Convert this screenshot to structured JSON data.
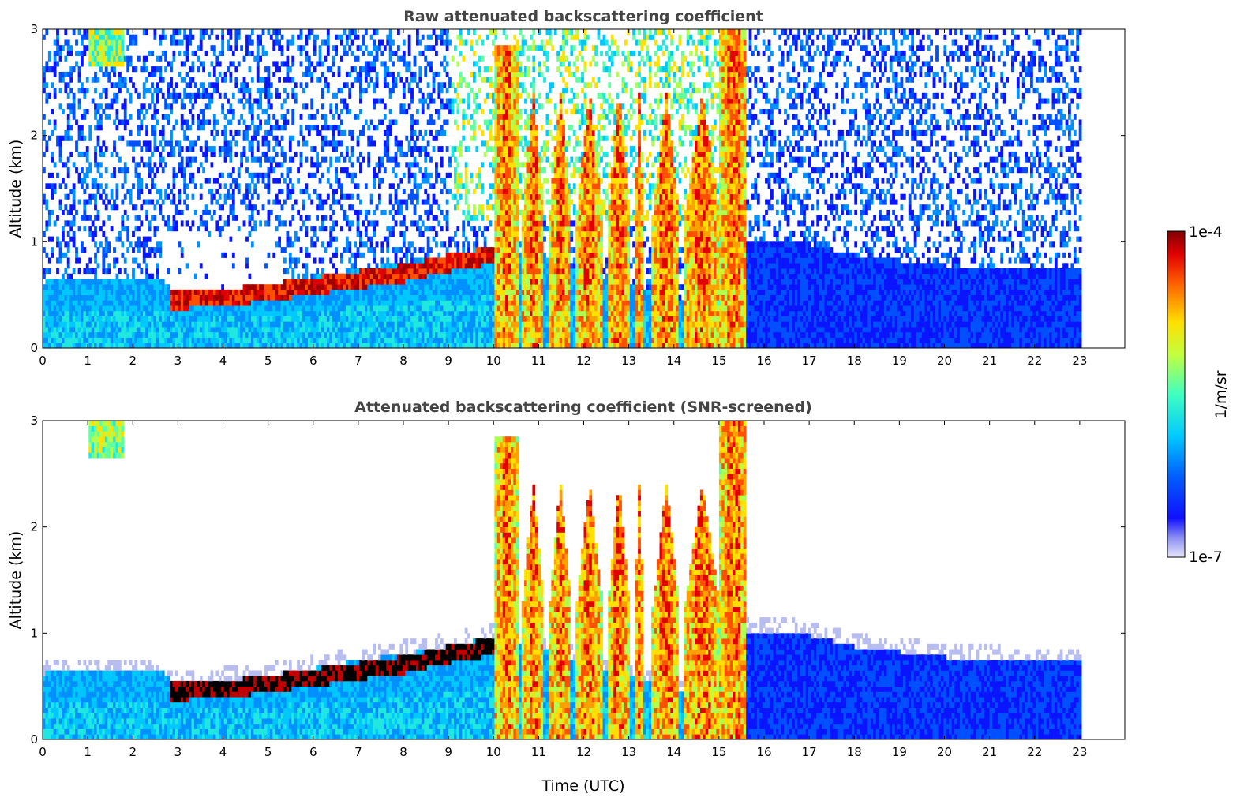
{
  "chart_data": [
    {
      "type": "heatmap",
      "title": "Raw attenuated backscattering coefficient",
      "xlabel": "",
      "ylabel": "Altitude (km)",
      "xlim": [
        0,
        24
      ],
      "ylim": [
        0,
        3
      ],
      "x_ticks": [
        "0",
        "1",
        "2",
        "3",
        "4",
        "5",
        "6",
        "7",
        "8",
        "9",
        "10",
        "11",
        "12",
        "13",
        "14",
        "15",
        "16",
        "17",
        "18",
        "19",
        "20",
        "21",
        "22",
        "23"
      ],
      "y_ticks": [
        "0",
        "1",
        "2",
        "3"
      ],
      "data_end_time": 23,
      "screened": false
    },
    {
      "type": "heatmap",
      "title": "Attenuated backscattering coefficient (SNR-screened)",
      "xlabel": "Time (UTC)",
      "ylabel": "Altitude (km)",
      "xlim": [
        0,
        24
      ],
      "ylim": [
        0,
        3
      ],
      "x_ticks": [
        "0",
        "1",
        "2",
        "3",
        "4",
        "5",
        "6",
        "7",
        "8",
        "9",
        "10",
        "11",
        "12",
        "13",
        "14",
        "15",
        "16",
        "17",
        "18",
        "19",
        "20",
        "21",
        "22",
        "23"
      ],
      "y_ticks": [
        "0",
        "1",
        "2",
        "3"
      ],
      "data_end_time": 23,
      "screened": true
    }
  ],
  "colorbar": {
    "label": "1/m/sr",
    "max_label": "1e-4",
    "min_label": "1e-7",
    "colormap": "jet",
    "scale": "log"
  },
  "features": {
    "boundary_layer_top_km": [
      [
        0,
        0.6
      ],
      [
        2.6,
        0.62
      ],
      [
        3,
        0.48
      ],
      [
        5,
        0.58
      ],
      [
        7,
        0.72
      ],
      [
        9,
        0.85
      ],
      [
        10,
        0.95
      ],
      [
        10.5,
        0.9
      ],
      [
        14.2,
        0.4
      ],
      [
        15,
        1.0
      ],
      [
        16.5,
        1.0
      ],
      [
        18,
        0.85
      ],
      [
        20,
        0.75
      ],
      [
        23,
        0.7
      ]
    ],
    "dense_aerosol_layer_km": [
      [
        2.8,
        0.42
      ],
      [
        4,
        0.45
      ],
      [
        5,
        0.5
      ],
      [
        6,
        0.56
      ],
      [
        7,
        0.62
      ],
      [
        8,
        0.68
      ],
      [
        9,
        0.78
      ],
      [
        10,
        0.85
      ]
    ],
    "cloud_plumes_hours": [
      [
        10.0,
        10.5
      ],
      [
        10.6,
        11.1
      ],
      [
        11.2,
        11.7
      ],
      [
        11.8,
        12.4
      ],
      [
        12.5,
        13.0
      ],
      [
        13.1,
        13.3
      ],
      [
        13.5,
        14.1
      ],
      [
        14.2,
        15.0
      ],
      [
        15.0,
        15.6
      ]
    ]
  }
}
